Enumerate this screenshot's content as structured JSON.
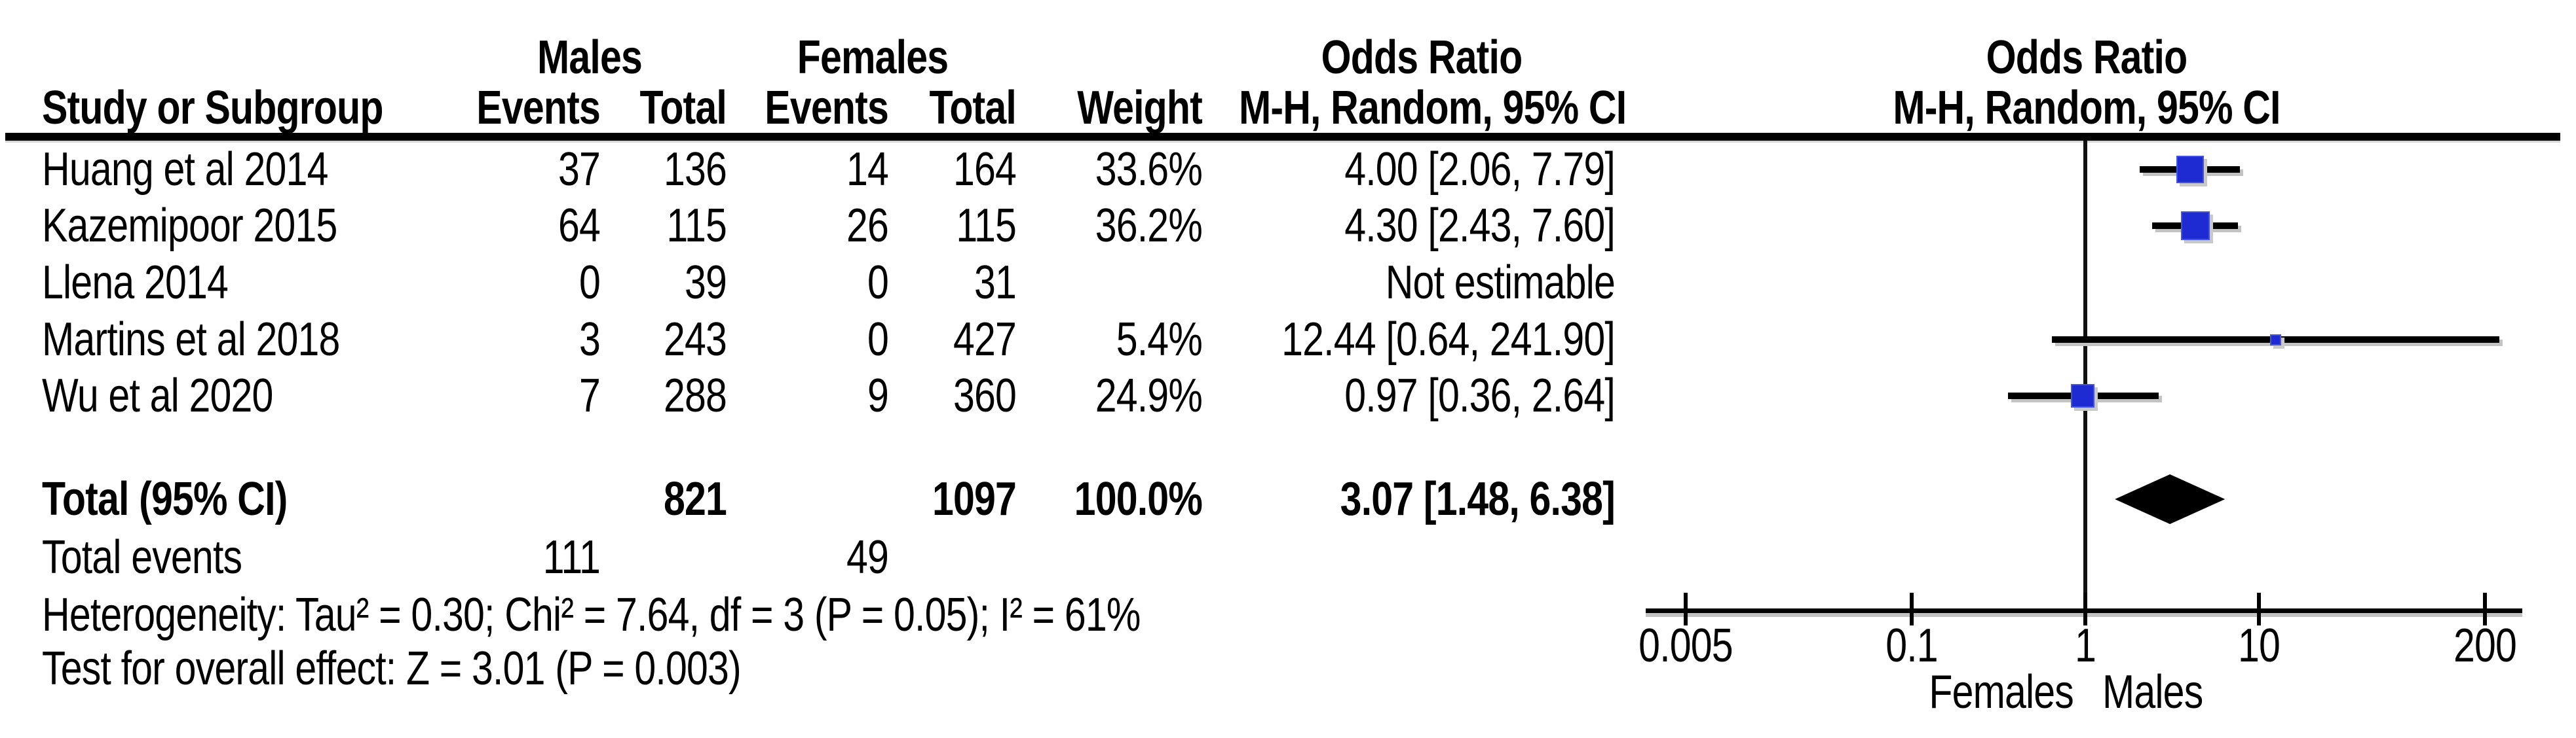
{
  "header": {
    "males": "Males",
    "females": "Females",
    "or_col": {
      "l1": "Odds Ratio",
      "l2": "M-H, Random, 95% CI"
    },
    "plot_col": {
      "l1": "Odds Ratio",
      "l2": "M-H, Random, 95% CI"
    },
    "study": "Study or Subgroup",
    "m_events": "Events",
    "m_total": "Total",
    "f_events": "Events",
    "f_total": "Total",
    "weight": "Weight"
  },
  "rows": [
    {
      "study": "Huang et al 2014",
      "me": "37",
      "mt": "136",
      "fe": "14",
      "ft": "164",
      "w": "33.6%",
      "ci": "4.00 [2.06, 7.79]"
    },
    {
      "study": "Kazemipoor 2015",
      "me": "64",
      "mt": "115",
      "fe": "26",
      "ft": "115",
      "w": "36.2%",
      "ci": "4.30 [2.43, 7.60]"
    },
    {
      "study": "Llena 2014",
      "me": "0",
      "mt": "39",
      "fe": "0",
      "ft": "31",
      "w": "",
      "ci": "Not estimable"
    },
    {
      "study": "Martins et al 2018",
      "me": "3",
      "mt": "243",
      "fe": "0",
      "ft": "427",
      "w": "5.4%",
      "ci": "12.44 [0.64, 241.90]"
    },
    {
      "study": "Wu et al 2020",
      "me": "7",
      "mt": "288",
      "fe": "9",
      "ft": "360",
      "w": "24.9%",
      "ci": "0.97 [0.36, 2.64]"
    }
  ],
  "total_row": {
    "label": "Total (95% CI)",
    "mt": "821",
    "ft": "1097",
    "w": "100.0%",
    "ci": "3.07 [1.48, 6.38]"
  },
  "total_events": {
    "label": "Total events",
    "m": "111",
    "f": "49"
  },
  "stats": {
    "heterogeneity": "Heterogeneity: Tau² = 0.30; Chi² = 7.64, df = 3 (P = 0.05); I² = 61%",
    "overall": "Test for overall effect: Z = 3.01 (P = 0.003)"
  },
  "favours": {
    "left": "Females",
    "right": "Males"
  },
  "chart_data": {
    "type": "forest",
    "effect_measure": "Odds Ratio",
    "model": "M-H, Random, 95% CI",
    "studies": [
      {
        "name": "Huang et al 2014",
        "or": 4.0,
        "ci_low": 2.06,
        "ci_high": 7.79,
        "weight_pct": 33.6
      },
      {
        "name": "Kazemipoor 2015",
        "or": 4.3,
        "ci_low": 2.43,
        "ci_high": 7.6,
        "weight_pct": 36.2
      },
      {
        "name": "Llena 2014",
        "or": null,
        "ci_low": null,
        "ci_high": null,
        "weight_pct": null,
        "note": "Not estimable"
      },
      {
        "name": "Martins et al 2018",
        "or": 12.44,
        "ci_low": 0.64,
        "ci_high": 241.9,
        "weight_pct": 5.4
      },
      {
        "name": "Wu et al 2020",
        "or": 0.97,
        "ci_low": 0.36,
        "ci_high": 2.64,
        "weight_pct": 24.9
      }
    ],
    "total": {
      "label": "Total (95% CI)",
      "or": 3.07,
      "ci_low": 1.48,
      "ci_high": 6.38,
      "weight_pct": 100.0,
      "males_total": 821,
      "females_total": 1097
    },
    "total_events": {
      "males": 111,
      "females": 49
    },
    "heterogeneity": {
      "tau2": 0.3,
      "chi2": 7.64,
      "df": 3,
      "p": 0.05,
      "i2_pct": 61
    },
    "overall_effect": {
      "z": 3.01,
      "p": 0.003
    },
    "axis": {
      "scale": "log",
      "ticks": [
        0.005,
        0.1,
        1,
        10,
        200
      ],
      "tick_labels": [
        "0.005",
        "0.1",
        "1",
        "10",
        "200"
      ],
      "min": 0.005,
      "max": 200
    },
    "favours_left": "Females",
    "favours_right": "Males",
    "marker_color": "#1e2bd2",
    "line_color": "#000000"
  }
}
